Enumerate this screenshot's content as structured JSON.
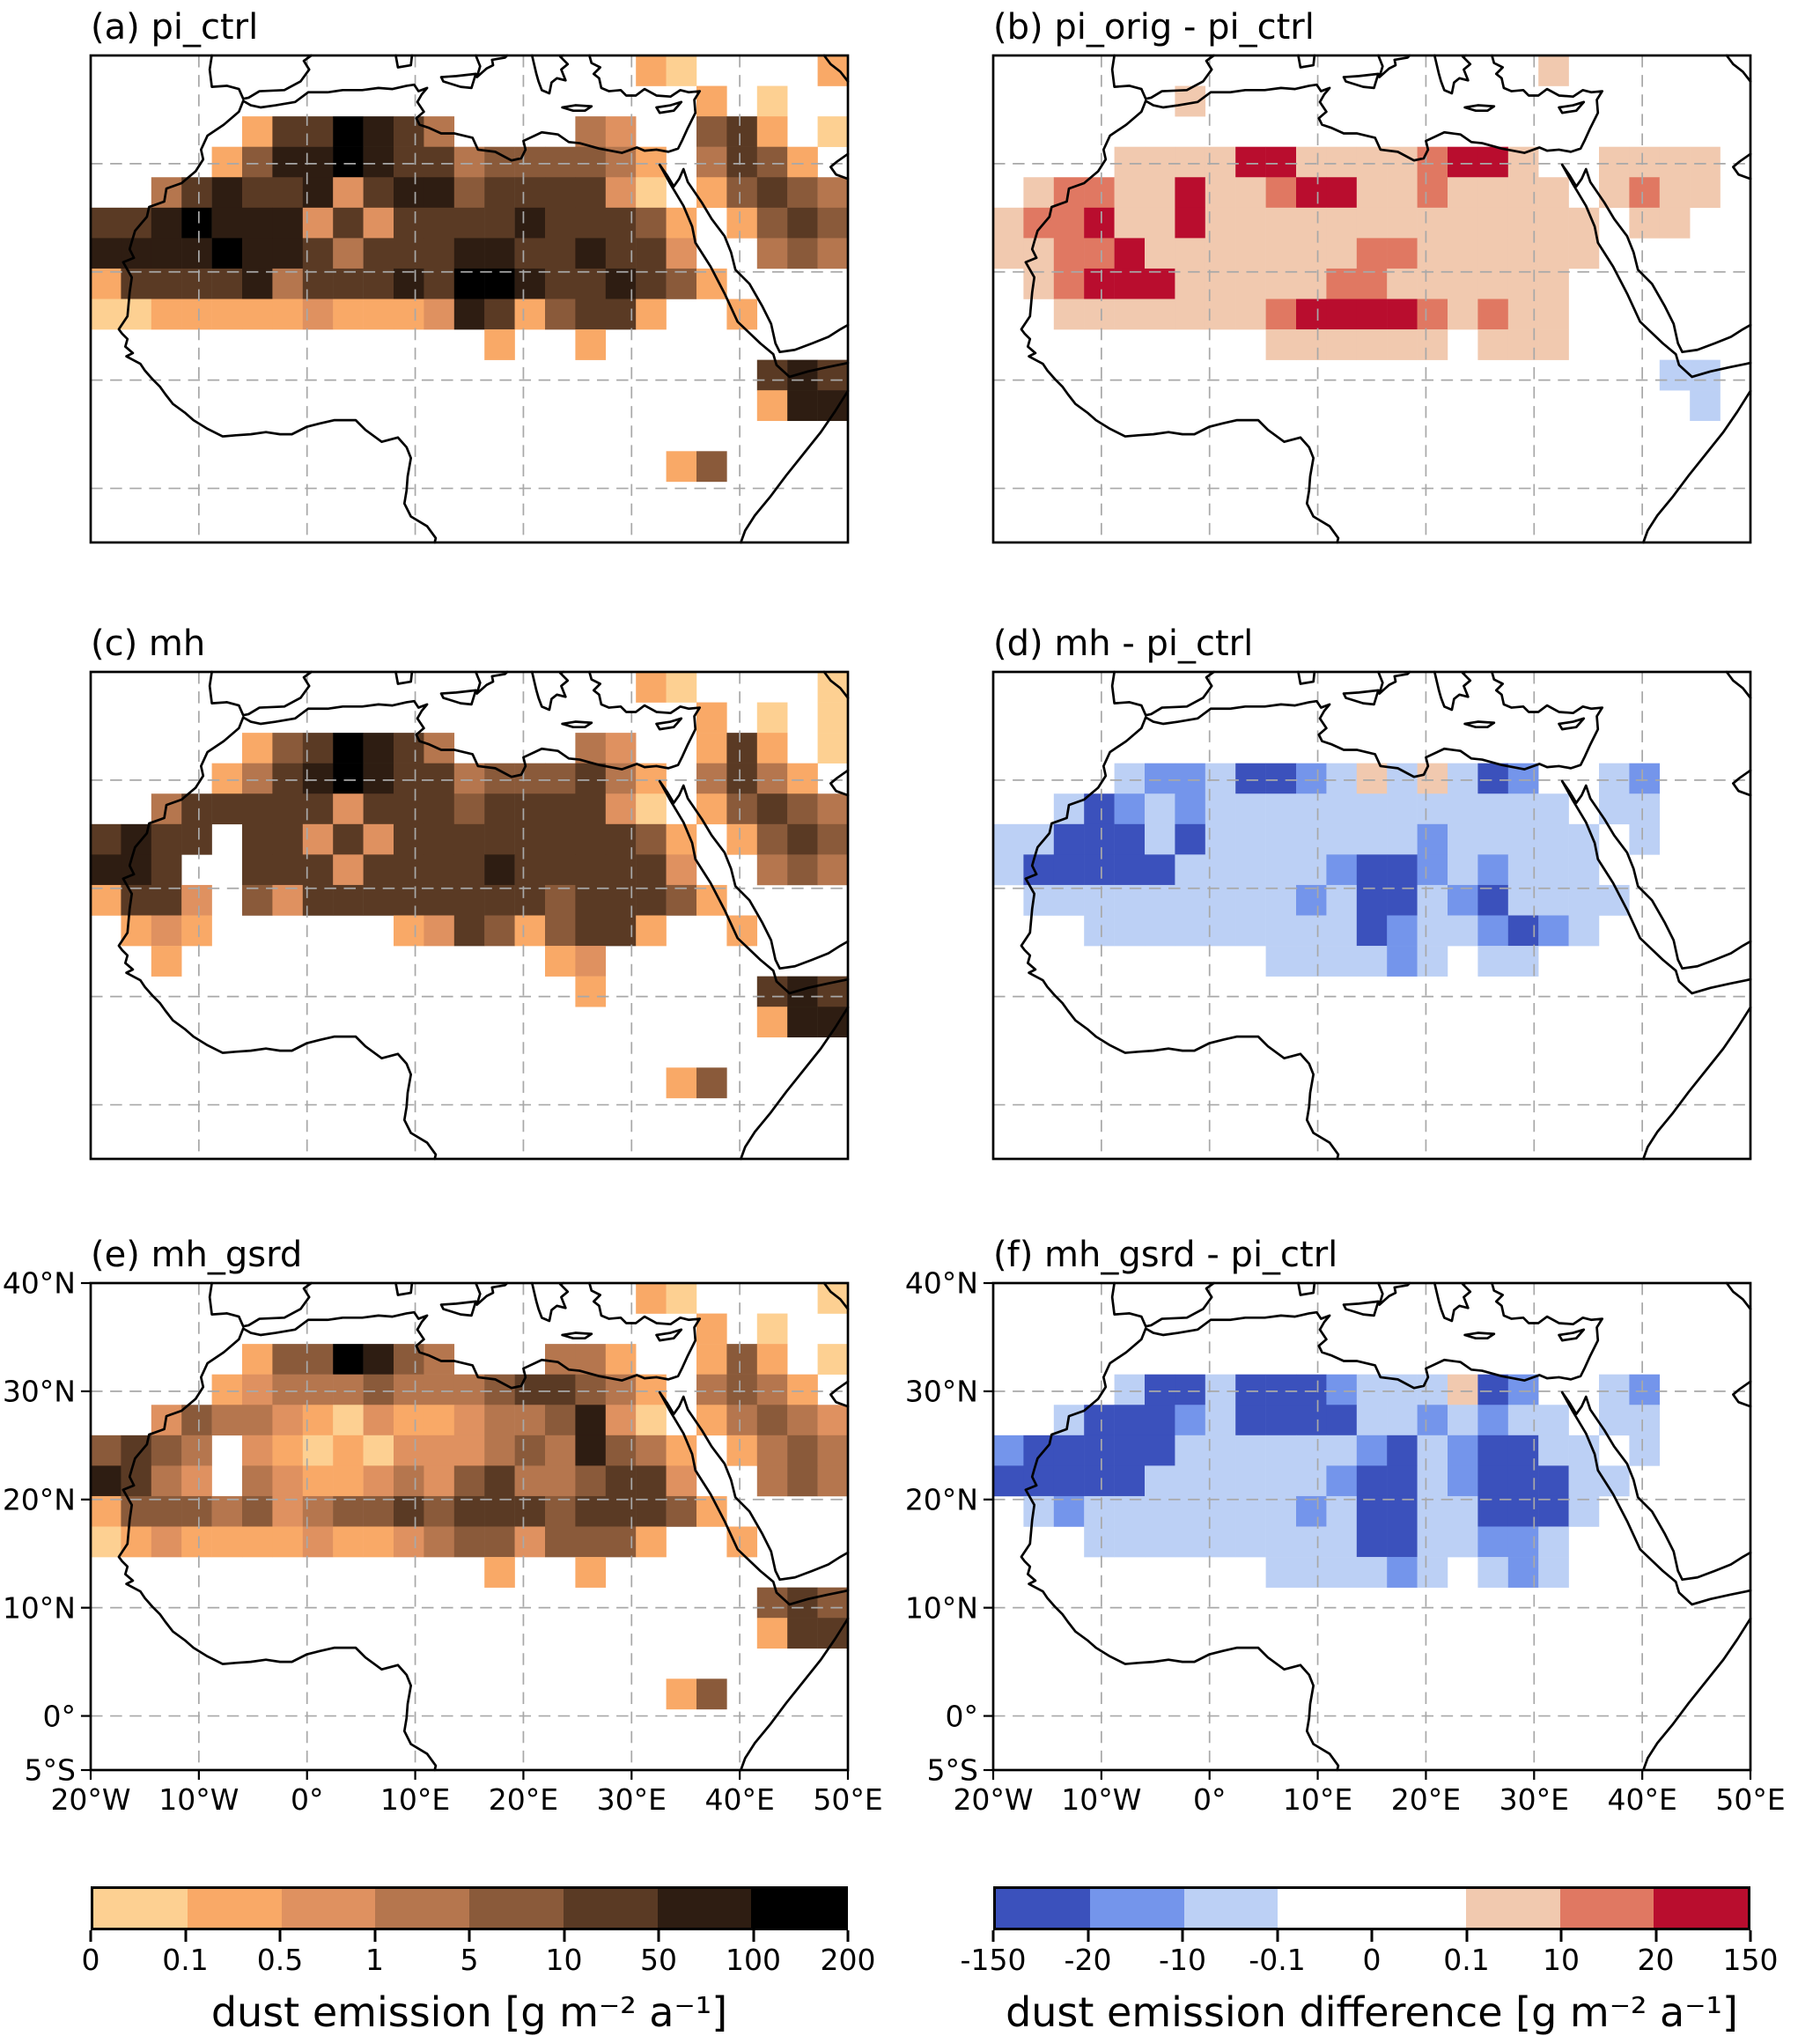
{
  "chart_data": {
    "type": "heatmap",
    "description": "Six-panel longitude-latitude map figure of simulated annual dust emission over North Africa and Arabia. Left column: absolute dust emission (sequential tan-to-black colormap). Right column: dust emission difference versus pi_ctrl (blue-white-red diverging colormap).",
    "lon_range": [
      -20,
      50
    ],
    "lat_range": [
      -5,
      40
    ],
    "cell_size_deg": [
      2.8,
      2.8125
    ],
    "x_ticks": [
      {
        "label": "20°W",
        "lon": -20
      },
      {
        "label": "10°W",
        "lon": -10
      },
      {
        "label": "0°",
        "lon": 0
      },
      {
        "label": "10°E",
        "lon": 10
      },
      {
        "label": "20°E",
        "lon": 20
      },
      {
        "label": "30°E",
        "lon": 30
      },
      {
        "label": "40°E",
        "lon": 40
      },
      {
        "label": "50°E",
        "lon": 50
      }
    ],
    "y_ticks": [
      {
        "label": "40°N",
        "lat": 40
      },
      {
        "label": "30°N",
        "lat": 30
      },
      {
        "label": "20°N",
        "lat": 20
      },
      {
        "label": "10°N",
        "lat": 10
      },
      {
        "label": "0°",
        "lat": 0
      },
      {
        "label": "5°S",
        "lat": -5
      }
    ],
    "gridline_lons": [
      -10,
      0,
      10,
      20,
      30,
      40
    ],
    "gridline_lats": [
      30,
      20,
      10,
      0
    ],
    "emission_bins": {
      "boundaries": [
        0,
        0.1,
        0.5,
        1,
        5,
        10,
        50,
        100,
        200
      ],
      "tick_labels": [
        "0",
        "0.1",
        "0.5",
        "1",
        "5",
        "10",
        "50",
        "100",
        "200"
      ],
      "colors": [
        "#fdd092",
        "#f9a967",
        "#df9160",
        "#b5764e",
        "#8a5a3a",
        "#5a3a24",
        "#2e1d12",
        "#000000"
      ]
    },
    "difference_bins": {
      "boundaries": [
        -150,
        -20,
        -10,
        -0.1,
        0,
        0.1,
        10,
        20,
        150
      ],
      "tick_labels": [
        "-150",
        "-20",
        "-10",
        "-0.1",
        "0",
        "0.1",
        "10",
        "20",
        "150"
      ],
      "colors": [
        "#3b51bc",
        "#7495eb",
        "#bcd0f5",
        "#ffffff",
        "#ffffff",
        "#f1c9af",
        "#e07862",
        "#b90d2e"
      ]
    },
    "legend": {
      "emission_label": "dust emission [g m⁻² a⁻¹]",
      "difference_label": "dust emission difference [g m⁻² a⁻¹]"
    },
    "grid_encoding": "Each panel grid has 16 rows (top 40°N to bottom 5°S, 2.8125° per row) and 25 columns (20°W to 50°E, 2.8° per column). '.' = no data (white); digits 1-8 = color bin index into the panel colormap (1 = lowest bin, 8 = highest bin).",
    "panels": [
      {
        "label": "(a) pi_ctrl",
        "colormap": "emission",
        "grid": [
          "..................21....2",
          "....................2.1..",
          ".....2668764....43..562.1",
          "....257787664555542.4652.",
          "..46766736775666631.25654",
          "66787773636666766652.2565",
          "77778776466677667663..454",
          "266667466676887667652....",
          "1122222322237625662..2...",
          ".............2..2........",
          "......................676",
          "......................277",
          ".........................",
          "...................25....",
          ".........................",
          "........................."
        ]
      },
      {
        "label": "(b) pi_orig - pi_ctrl",
        "colormap": "difference",
        "grid": [
          "..................6......",
          "......6..................",
          ".........................",
          "....66668866667886..6666.",
          ".677668667886676666.6766.",
          "67786686666666666666.66..",
          "66778666666677666666.....",
          ".678886666677666666......",
          "..66666667888876766......",
          ".........666666.666......",
          "......................33.",
          ".......................3.",
          ".........................",
          ".........................",
          ".........................",
          "........................."
        ]
      },
      {
        "label": "(c) mh",
        "colormap": "emission",
        "grid": [
          "..................21....1",
          "....................2.1.1",
          ".....2568764....43..262.1",
          "....246787664555642.4642.",
          "..46666636665666631.25654",
          "6766.663636666666652.2565",
          "776..666366667666663..454",
          "2663.5366666666566652....",
          ".232......236525662..2...",
          "..2............23........",
          "................2.....676",
          "......................277",
          ".........................",
          "...................25....",
          ".........................",
          "........................."
        ]
      },
      {
        "label": "(d) mh - pi_ctrl",
        "colormap": "difference",
        "grid": [
          ".........................",
          ".........................",
          ".........................",
          "....32231123636312..32...",
          "..31232333333333333.33...",
          "33111313333333233333.3...",
          "31111133333211232333.....",
          ".33333333323113213333....",
          "...33333333312332123.....",
          ".........333323.33.......",
          ".........................",
          ".........................",
          ".........................",
          ".........................",
          ".........................",
          "........................."
        ]
      },
      {
        "label": "(e) mh_gsrd",
        "colormap": "emission",
        "grid": [
          "..................21....1",
          "....................2.1..",
          ".....2558754...442..252.1",
          "....234445444566542.4542.",
          "..35443213223445731.24543",
          "5654.321213334547542.2454",
          "7643.432234356445663..454",
          "255545345565666566652....",
          "1232222322345535552..2...",
          ".............2..2........",
          "......................565",
          "......................266",
          ".........................",
          "...................25....",
          ".........................",
          "........................."
        ]
      },
      {
        "label": "(f) mh_gsrd - pi_ctrl",
        "colormap": "difference",
        "grid": [
          ".........................",
          ".........................",
          ".........................",
          "....31131112333612..32...",
          "..31112311113323233.33...",
          "21111133333321321133.3...",
          "111113333332113211133....",
          ".3233333332311331113.....",
          "...3333333331133223......",
          ".........333323.323......",
          ".........................",
          ".........................",
          ".........................",
          ".........................",
          ".........................",
          "........................."
        ]
      }
    ]
  }
}
